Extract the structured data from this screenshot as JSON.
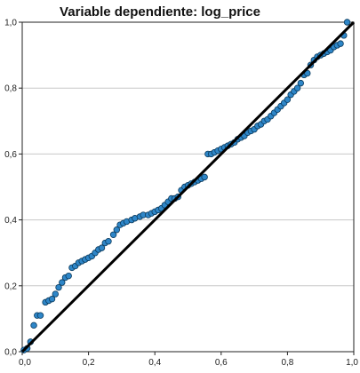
{
  "chart_data": {
    "type": "scatter",
    "title": "Variable dependiente: log_price",
    "xlabel": "",
    "ylabel": "",
    "xlim": [
      0,
      1
    ],
    "ylim": [
      0,
      1
    ],
    "grid": "horizontal",
    "x_ticks": [
      "0,0",
      "0,2",
      "0,4",
      "0,6",
      "0,8",
      "1,0"
    ],
    "y_ticks": [
      "0,0",
      "0,2",
      "0,4",
      "0,6",
      "0,8",
      "1,0"
    ],
    "reference_line": {
      "from": [
        0,
        0
      ],
      "to": [
        1,
        1
      ]
    },
    "colors": {
      "point_fill": "#2e86c8",
      "point_stroke": "#0b3a5c",
      "line": "#000000",
      "grid": "#c8c8c8"
    },
    "points": [
      [
        0.005,
        0.005
      ],
      [
        0.015,
        0.01
      ],
      [
        0.025,
        0.03
      ],
      [
        0.035,
        0.08
      ],
      [
        0.045,
        0.11
      ],
      [
        0.055,
        0.11
      ],
      [
        0.07,
        0.15
      ],
      [
        0.08,
        0.155
      ],
      [
        0.09,
        0.16
      ],
      [
        0.1,
        0.175
      ],
      [
        0.11,
        0.195
      ],
      [
        0.12,
        0.21
      ],
      [
        0.13,
        0.225
      ],
      [
        0.14,
        0.23
      ],
      [
        0.15,
        0.255
      ],
      [
        0.16,
        0.26
      ],
      [
        0.17,
        0.27
      ],
      [
        0.18,
        0.275
      ],
      [
        0.19,
        0.28
      ],
      [
        0.2,
        0.285
      ],
      [
        0.21,
        0.29
      ],
      [
        0.22,
        0.3
      ],
      [
        0.23,
        0.31
      ],
      [
        0.24,
        0.315
      ],
      [
        0.25,
        0.33
      ],
      [
        0.26,
        0.335
      ],
      [
        0.275,
        0.355
      ],
      [
        0.285,
        0.37
      ],
      [
        0.295,
        0.385
      ],
      [
        0.305,
        0.39
      ],
      [
        0.315,
        0.395
      ],
      [
        0.33,
        0.4
      ],
      [
        0.34,
        0.405
      ],
      [
        0.355,
        0.41
      ],
      [
        0.365,
        0.415
      ],
      [
        0.38,
        0.415
      ],
      [
        0.39,
        0.42
      ],
      [
        0.4,
        0.425
      ],
      [
        0.41,
        0.43
      ],
      [
        0.42,
        0.435
      ],
      [
        0.43,
        0.445
      ],
      [
        0.44,
        0.455
      ],
      [
        0.45,
        0.465
      ],
      [
        0.46,
        0.465
      ],
      [
        0.47,
        0.47
      ],
      [
        0.48,
        0.49
      ],
      [
        0.49,
        0.5
      ],
      [
        0.5,
        0.505
      ],
      [
        0.51,
        0.51
      ],
      [
        0.52,
        0.515
      ],
      [
        0.53,
        0.52
      ],
      [
        0.54,
        0.525
      ],
      [
        0.55,
        0.53
      ],
      [
        0.56,
        0.6
      ],
      [
        0.57,
        0.6
      ],
      [
        0.58,
        0.605
      ],
      [
        0.59,
        0.61
      ],
      [
        0.6,
        0.615
      ],
      [
        0.61,
        0.62
      ],
      [
        0.62,
        0.625
      ],
      [
        0.63,
        0.63
      ],
      [
        0.64,
        0.635
      ],
      [
        0.65,
        0.645
      ],
      [
        0.66,
        0.65
      ],
      [
        0.67,
        0.655
      ],
      [
        0.68,
        0.665
      ],
      [
        0.69,
        0.67
      ],
      [
        0.7,
        0.675
      ],
      [
        0.71,
        0.685
      ],
      [
        0.72,
        0.69
      ],
      [
        0.73,
        0.7
      ],
      [
        0.74,
        0.705
      ],
      [
        0.75,
        0.715
      ],
      [
        0.76,
        0.725
      ],
      [
        0.77,
        0.735
      ],
      [
        0.78,
        0.745
      ],
      [
        0.79,
        0.755
      ],
      [
        0.8,
        0.765
      ],
      [
        0.81,
        0.78
      ],
      [
        0.82,
        0.79
      ],
      [
        0.83,
        0.8
      ],
      [
        0.84,
        0.815
      ],
      [
        0.85,
        0.84
      ],
      [
        0.86,
        0.845
      ],
      [
        0.87,
        0.87
      ],
      [
        0.88,
        0.885
      ],
      [
        0.89,
        0.895
      ],
      [
        0.9,
        0.9
      ],
      [
        0.91,
        0.905
      ],
      [
        0.92,
        0.91
      ],
      [
        0.93,
        0.915
      ],
      [
        0.94,
        0.925
      ],
      [
        0.95,
        0.93
      ],
      [
        0.96,
        0.935
      ],
      [
        0.97,
        0.96
      ],
      [
        0.98,
        1.0
      ]
    ]
  }
}
